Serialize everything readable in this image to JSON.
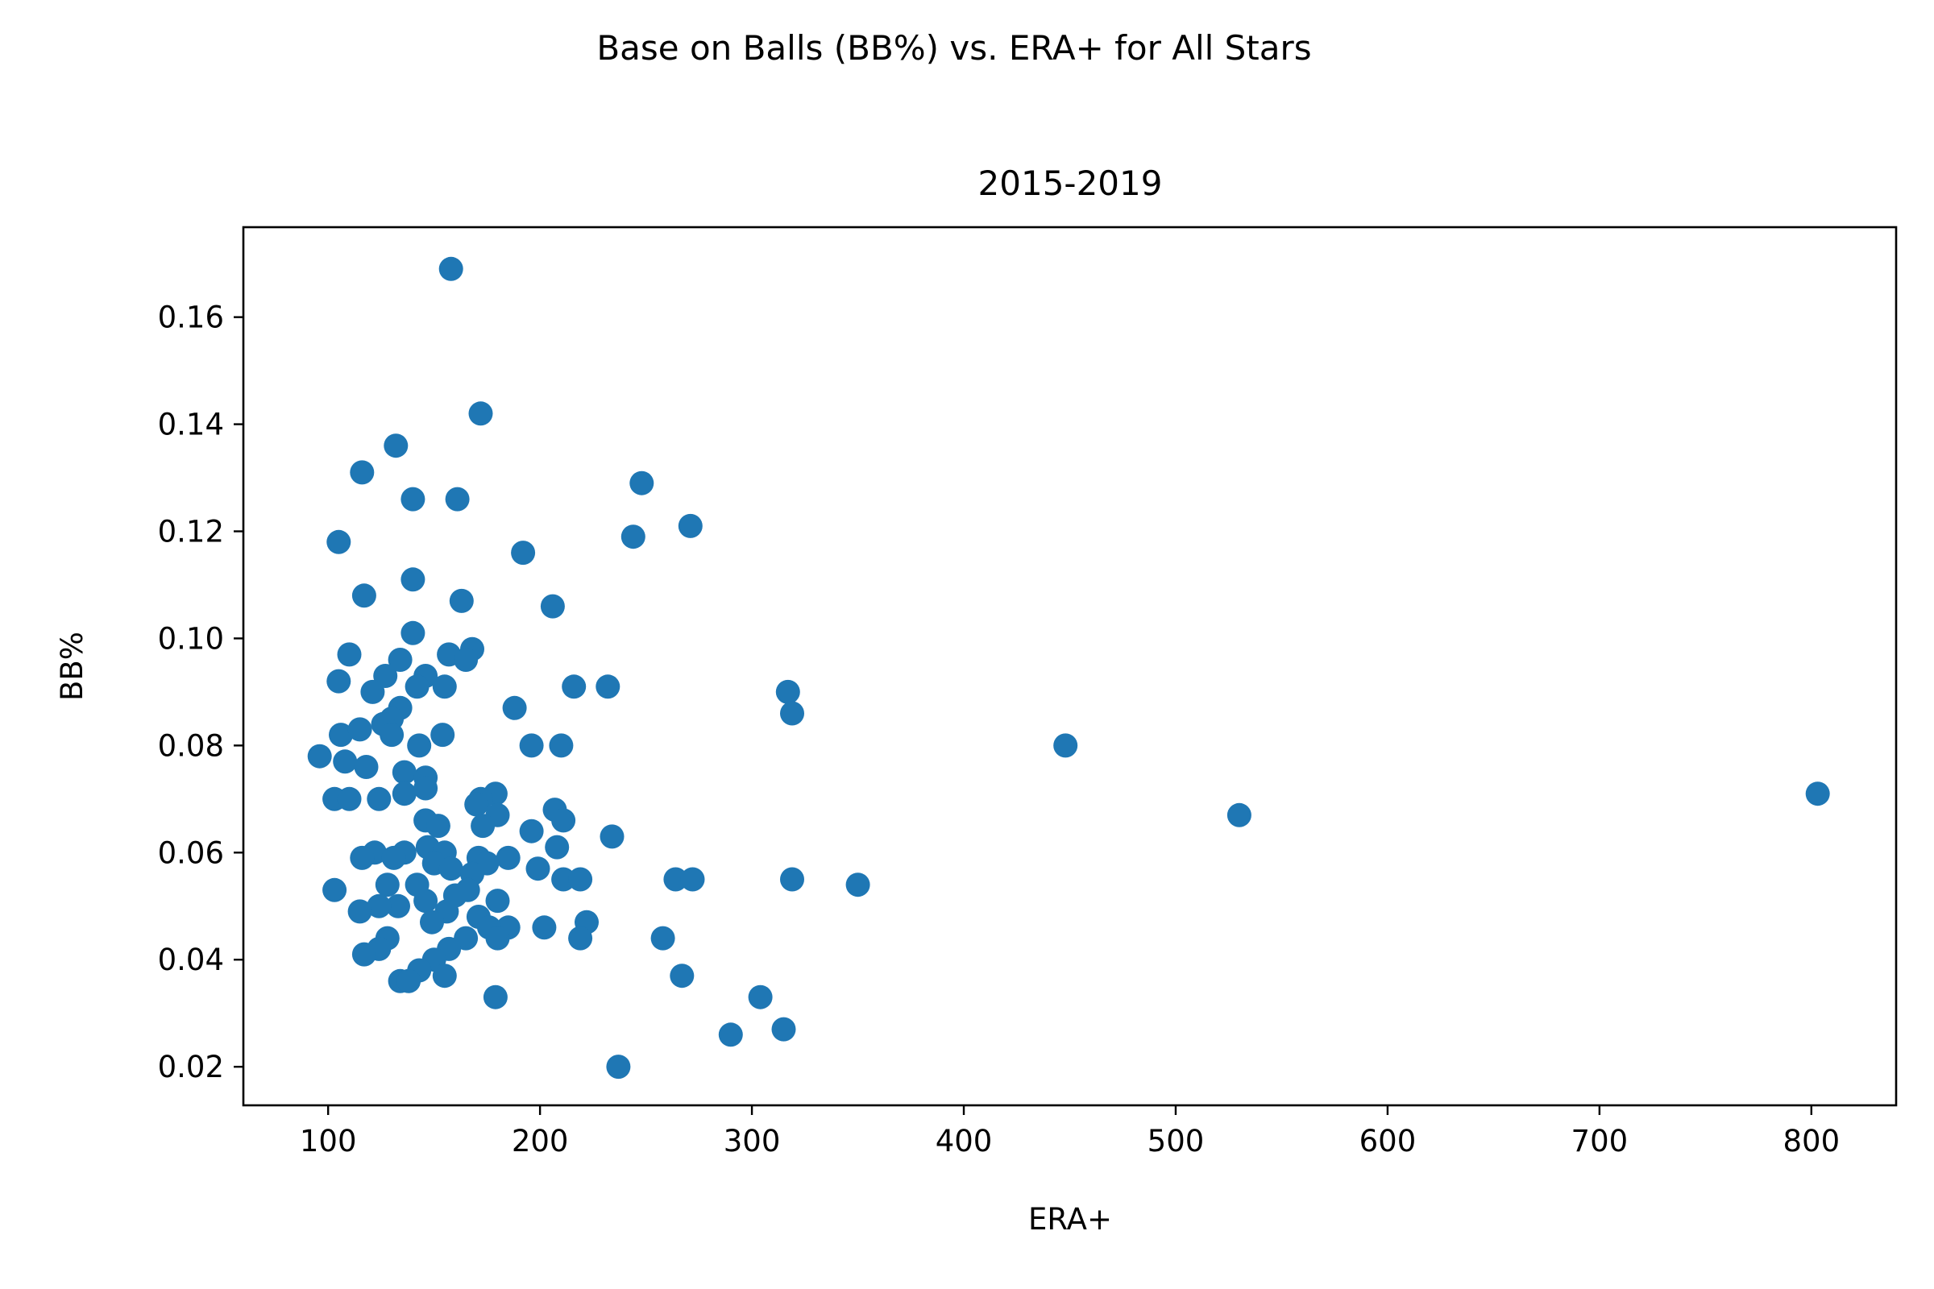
{
  "chart_data": {
    "type": "scatter",
    "suptitle": "Base on Balls (BB%) vs. ERA+ for All Stars",
    "title": "2015-2019",
    "xlabel": "ERA+",
    "ylabel": "BB%",
    "xlim": [
      60,
      840
    ],
    "ylim": [
      0.0128,
      0.1768
    ],
    "xticks": [
      100,
      200,
      300,
      400,
      500,
      600,
      700,
      800
    ],
    "xtick_labels": [
      "100",
      "200",
      "300",
      "400",
      "500",
      "600",
      "700",
      "800"
    ],
    "yticks": [
      0.02,
      0.04,
      0.06,
      0.08,
      0.1,
      0.12,
      0.14,
      0.16
    ],
    "ytick_labels": [
      "0.02",
      "0.04",
      "0.06",
      "0.08",
      "0.10",
      "0.12",
      "0.14",
      "0.16"
    ],
    "grid": false,
    "marker_color": "#1f77b4",
    "points": [
      [
        158,
        0.169
      ],
      [
        172,
        0.142
      ],
      [
        132,
        0.136
      ],
      [
        116,
        0.131
      ],
      [
        248,
        0.129
      ],
      [
        140,
        0.126
      ],
      [
        161,
        0.126
      ],
      [
        271,
        0.121
      ],
      [
        244,
        0.119
      ],
      [
        105,
        0.118
      ],
      [
        192,
        0.116
      ],
      [
        140,
        0.111
      ],
      [
        117,
        0.108
      ],
      [
        163,
        0.107
      ],
      [
        206,
        0.106
      ],
      [
        140,
        0.101
      ],
      [
        168,
        0.098
      ],
      [
        110,
        0.097
      ],
      [
        157,
        0.097
      ],
      [
        165,
        0.096
      ],
      [
        134,
        0.096
      ],
      [
        127,
        0.093
      ],
      [
        146,
        0.093
      ],
      [
        105,
        0.092
      ],
      [
        142,
        0.091
      ],
      [
        121,
        0.09
      ],
      [
        155,
        0.091
      ],
      [
        216,
        0.091
      ],
      [
        232,
        0.091
      ],
      [
        317,
        0.09
      ],
      [
        188,
        0.087
      ],
      [
        134,
        0.087
      ],
      [
        130,
        0.085
      ],
      [
        319,
        0.086
      ],
      [
        126,
        0.084
      ],
      [
        106,
        0.082
      ],
      [
        115,
        0.083
      ],
      [
        130,
        0.082
      ],
      [
        154,
        0.082
      ],
      [
        143,
        0.08
      ],
      [
        196,
        0.08
      ],
      [
        210,
        0.08
      ],
      [
        448,
        0.08
      ],
      [
        96,
        0.078
      ],
      [
        108,
        0.077
      ],
      [
        118,
        0.076
      ],
      [
        136,
        0.075
      ],
      [
        146,
        0.074
      ],
      [
        103,
        0.07
      ],
      [
        110,
        0.07
      ],
      [
        124,
        0.07
      ],
      [
        136,
        0.071
      ],
      [
        146,
        0.072
      ],
      [
        803,
        0.071
      ],
      [
        179,
        0.071
      ],
      [
        172,
        0.07
      ],
      [
        170,
        0.069
      ],
      [
        207,
        0.068
      ],
      [
        180,
        0.067
      ],
      [
        530,
        0.067
      ],
      [
        211,
        0.066
      ],
      [
        146,
        0.066
      ],
      [
        152,
        0.065
      ],
      [
        173,
        0.065
      ],
      [
        196,
        0.064
      ],
      [
        234,
        0.063
      ],
      [
        147,
        0.061
      ],
      [
        208,
        0.061
      ],
      [
        122,
        0.06
      ],
      [
        136,
        0.06
      ],
      [
        155,
        0.06
      ],
      [
        171,
        0.059
      ],
      [
        185,
        0.059
      ],
      [
        116,
        0.059
      ],
      [
        150,
        0.058
      ],
      [
        175,
        0.058
      ],
      [
        131,
        0.059
      ],
      [
        199,
        0.057
      ],
      [
        158,
        0.057
      ],
      [
        168,
        0.056
      ],
      [
        211,
        0.055
      ],
      [
        219,
        0.055
      ],
      [
        264,
        0.055
      ],
      [
        272,
        0.055
      ],
      [
        319,
        0.055
      ],
      [
        350,
        0.054
      ],
      [
        103,
        0.053
      ],
      [
        128,
        0.054
      ],
      [
        142,
        0.054
      ],
      [
        166,
        0.053
      ],
      [
        160,
        0.052
      ],
      [
        146,
        0.051
      ],
      [
        180,
        0.051
      ],
      [
        133,
        0.05
      ],
      [
        124,
        0.05
      ],
      [
        156,
        0.049
      ],
      [
        115,
        0.049
      ],
      [
        171,
        0.048
      ],
      [
        149,
        0.047
      ],
      [
        222,
        0.047
      ],
      [
        185,
        0.046
      ],
      [
        202,
        0.046
      ],
      [
        176,
        0.046
      ],
      [
        128,
        0.044
      ],
      [
        165,
        0.044
      ],
      [
        180,
        0.044
      ],
      [
        219,
        0.044
      ],
      [
        258,
        0.044
      ],
      [
        124,
        0.042
      ],
      [
        157,
        0.042
      ],
      [
        117,
        0.041
      ],
      [
        150,
        0.04
      ],
      [
        143,
        0.038
      ],
      [
        134,
        0.036
      ],
      [
        138,
        0.036
      ],
      [
        155,
        0.037
      ],
      [
        267,
        0.037
      ],
      [
        179,
        0.033
      ],
      [
        304,
        0.033
      ],
      [
        315,
        0.027
      ],
      [
        290,
        0.026
      ],
      [
        237,
        0.02
      ]
    ]
  }
}
